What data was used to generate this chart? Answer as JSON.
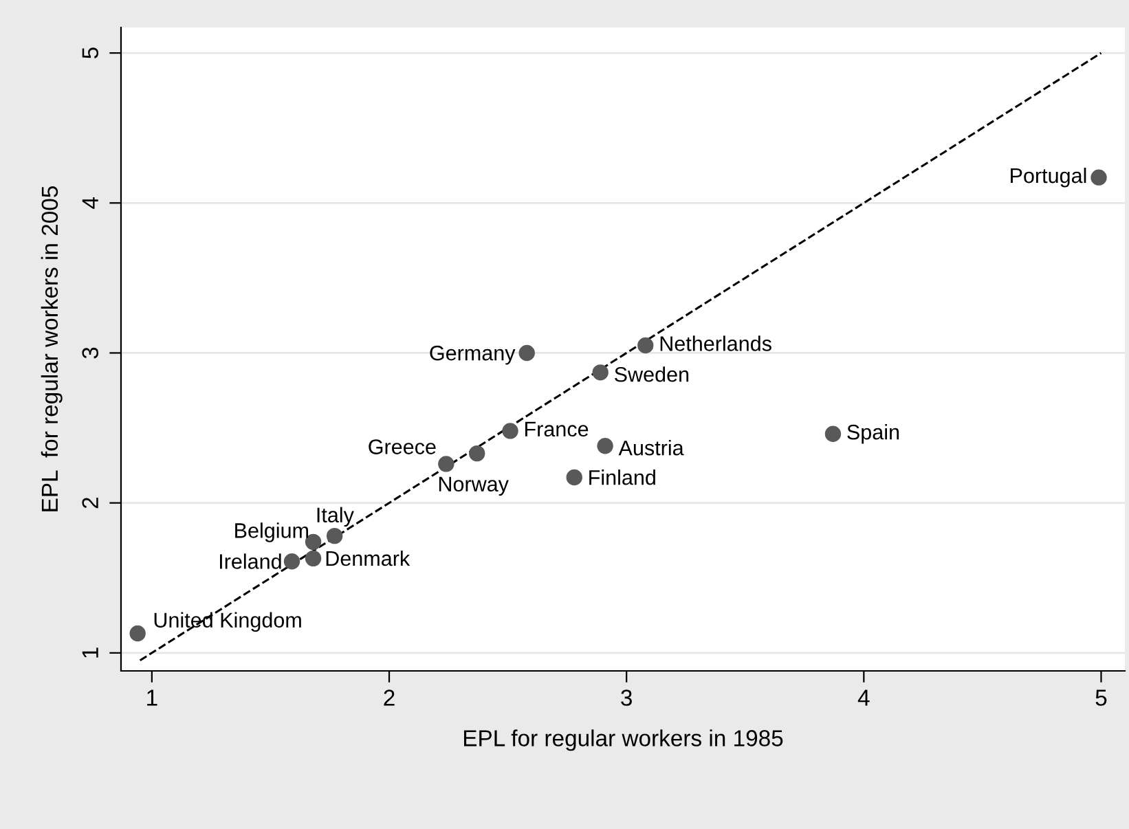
{
  "chart_data": {
    "type": "scatter",
    "xlabel": "EPL for regular workers in 1985",
    "ylabel": "EPL  for regular workers in 2005",
    "xlim": [
      0.87,
      5.1
    ],
    "ylim": [
      0.88,
      5.17
    ],
    "xticks": [
      1,
      2,
      3,
      4,
      5
    ],
    "yticks": [
      1,
      2,
      3,
      4,
      5
    ],
    "grid": "y",
    "marker": "circle",
    "series": [
      {
        "color": "#595959",
        "x": [
          0.94,
          1.59,
          1.68,
          1.68,
          1.77,
          2.24,
          2.37,
          2.51,
          2.58,
          2.89,
          3.08,
          2.91,
          2.78,
          3.87,
          4.99
        ],
        "values": [
          1.13,
          1.61,
          1.63,
          1.74,
          1.78,
          2.26,
          2.33,
          2.48,
          3.0,
          2.87,
          3.05,
          2.38,
          2.17,
          2.46,
          4.17
        ]
      },
      {
        "type": "line",
        "color": "#000000",
        "line_style": "dashed",
        "marker": "none",
        "x": [
          0.95,
          5
        ],
        "values": [
          0.95,
          5
        ]
      }
    ],
    "annotations": [
      {
        "text": "United Kingdom",
        "x": 0.94,
        "y": 1.13
      },
      {
        "text": "Ireland",
        "x": 1.59,
        "y": 1.61
      },
      {
        "text": "Denmark",
        "x": 1.68,
        "y": 1.63
      },
      {
        "text": "Belgium",
        "x": 1.68,
        "y": 1.74
      },
      {
        "text": "Italy",
        "x": 1.77,
        "y": 1.78
      },
      {
        "text": "Greece",
        "x": 2.24,
        "y": 2.26
      },
      {
        "text": "Norway",
        "x": 2.37,
        "y": 2.33
      },
      {
        "text": "France",
        "x": 2.51,
        "y": 2.48
      },
      {
        "text": "Germany",
        "x": 2.58,
        "y": 3.0
      },
      {
        "text": "Sweden",
        "x": 2.89,
        "y": 2.87
      },
      {
        "text": "Netherlands",
        "x": 3.08,
        "y": 3.05
      },
      {
        "text": "Austria",
        "x": 2.91,
        "y": 2.38
      },
      {
        "text": "Finland",
        "x": 2.78,
        "y": 2.17
      },
      {
        "text": "Spain",
        "x": 3.87,
        "y": 2.46
      },
      {
        "text": "Portugal",
        "x": 4.99,
        "y": 4.17
      }
    ]
  }
}
